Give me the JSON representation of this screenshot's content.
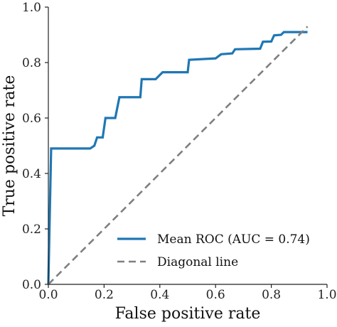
{
  "chart_data": {
    "type": "line",
    "title": "",
    "xlabel": "False positive rate",
    "ylabel": "True positive rate",
    "xlim": [
      0.0,
      1.0
    ],
    "ylim": [
      0.0,
      1.0
    ],
    "xticks": [
      "0.0",
      "0.2",
      "0.4",
      "0.6",
      "0.8",
      "1.0"
    ],
    "yticks": [
      "0.0",
      "0.2",
      "0.4",
      "0.6",
      "0.8",
      "1.0"
    ],
    "grid": false,
    "legend_position": "lower-right",
    "series": [
      {
        "name": "Mean ROC (AUC = 0.74)",
        "color": "#1f77b4",
        "style": "solid",
        "points": [
          [
            0.0,
            0.0
          ],
          [
            0.0,
            0.0
          ],
          [
            0.01,
            0.49
          ],
          [
            0.15,
            0.49
          ],
          [
            0.165,
            0.5
          ],
          [
            0.175,
            0.53
          ],
          [
            0.195,
            0.53
          ],
          [
            0.205,
            0.6
          ],
          [
            0.24,
            0.6
          ],
          [
            0.255,
            0.675
          ],
          [
            0.33,
            0.675
          ],
          [
            0.335,
            0.74
          ],
          [
            0.385,
            0.74
          ],
          [
            0.4,
            0.755
          ],
          [
            0.41,
            0.765
          ],
          [
            0.5,
            0.765
          ],
          [
            0.505,
            0.81
          ],
          [
            0.6,
            0.815
          ],
          [
            0.62,
            0.83
          ],
          [
            0.66,
            0.833
          ],
          [
            0.67,
            0.848
          ],
          [
            0.76,
            0.85
          ],
          [
            0.77,
            0.875
          ],
          [
            0.8,
            0.876
          ],
          [
            0.81,
            0.898
          ],
          [
            0.835,
            0.9
          ],
          [
            0.845,
            0.91
          ],
          [
            0.93,
            0.91
          ]
        ]
      },
      {
        "name": "Diagonal line",
        "color": "#7f7f7f",
        "style": "dashed",
        "points": [
          [
            0.0,
            0.0
          ],
          [
            0.93,
            0.93
          ]
        ]
      }
    ]
  }
}
